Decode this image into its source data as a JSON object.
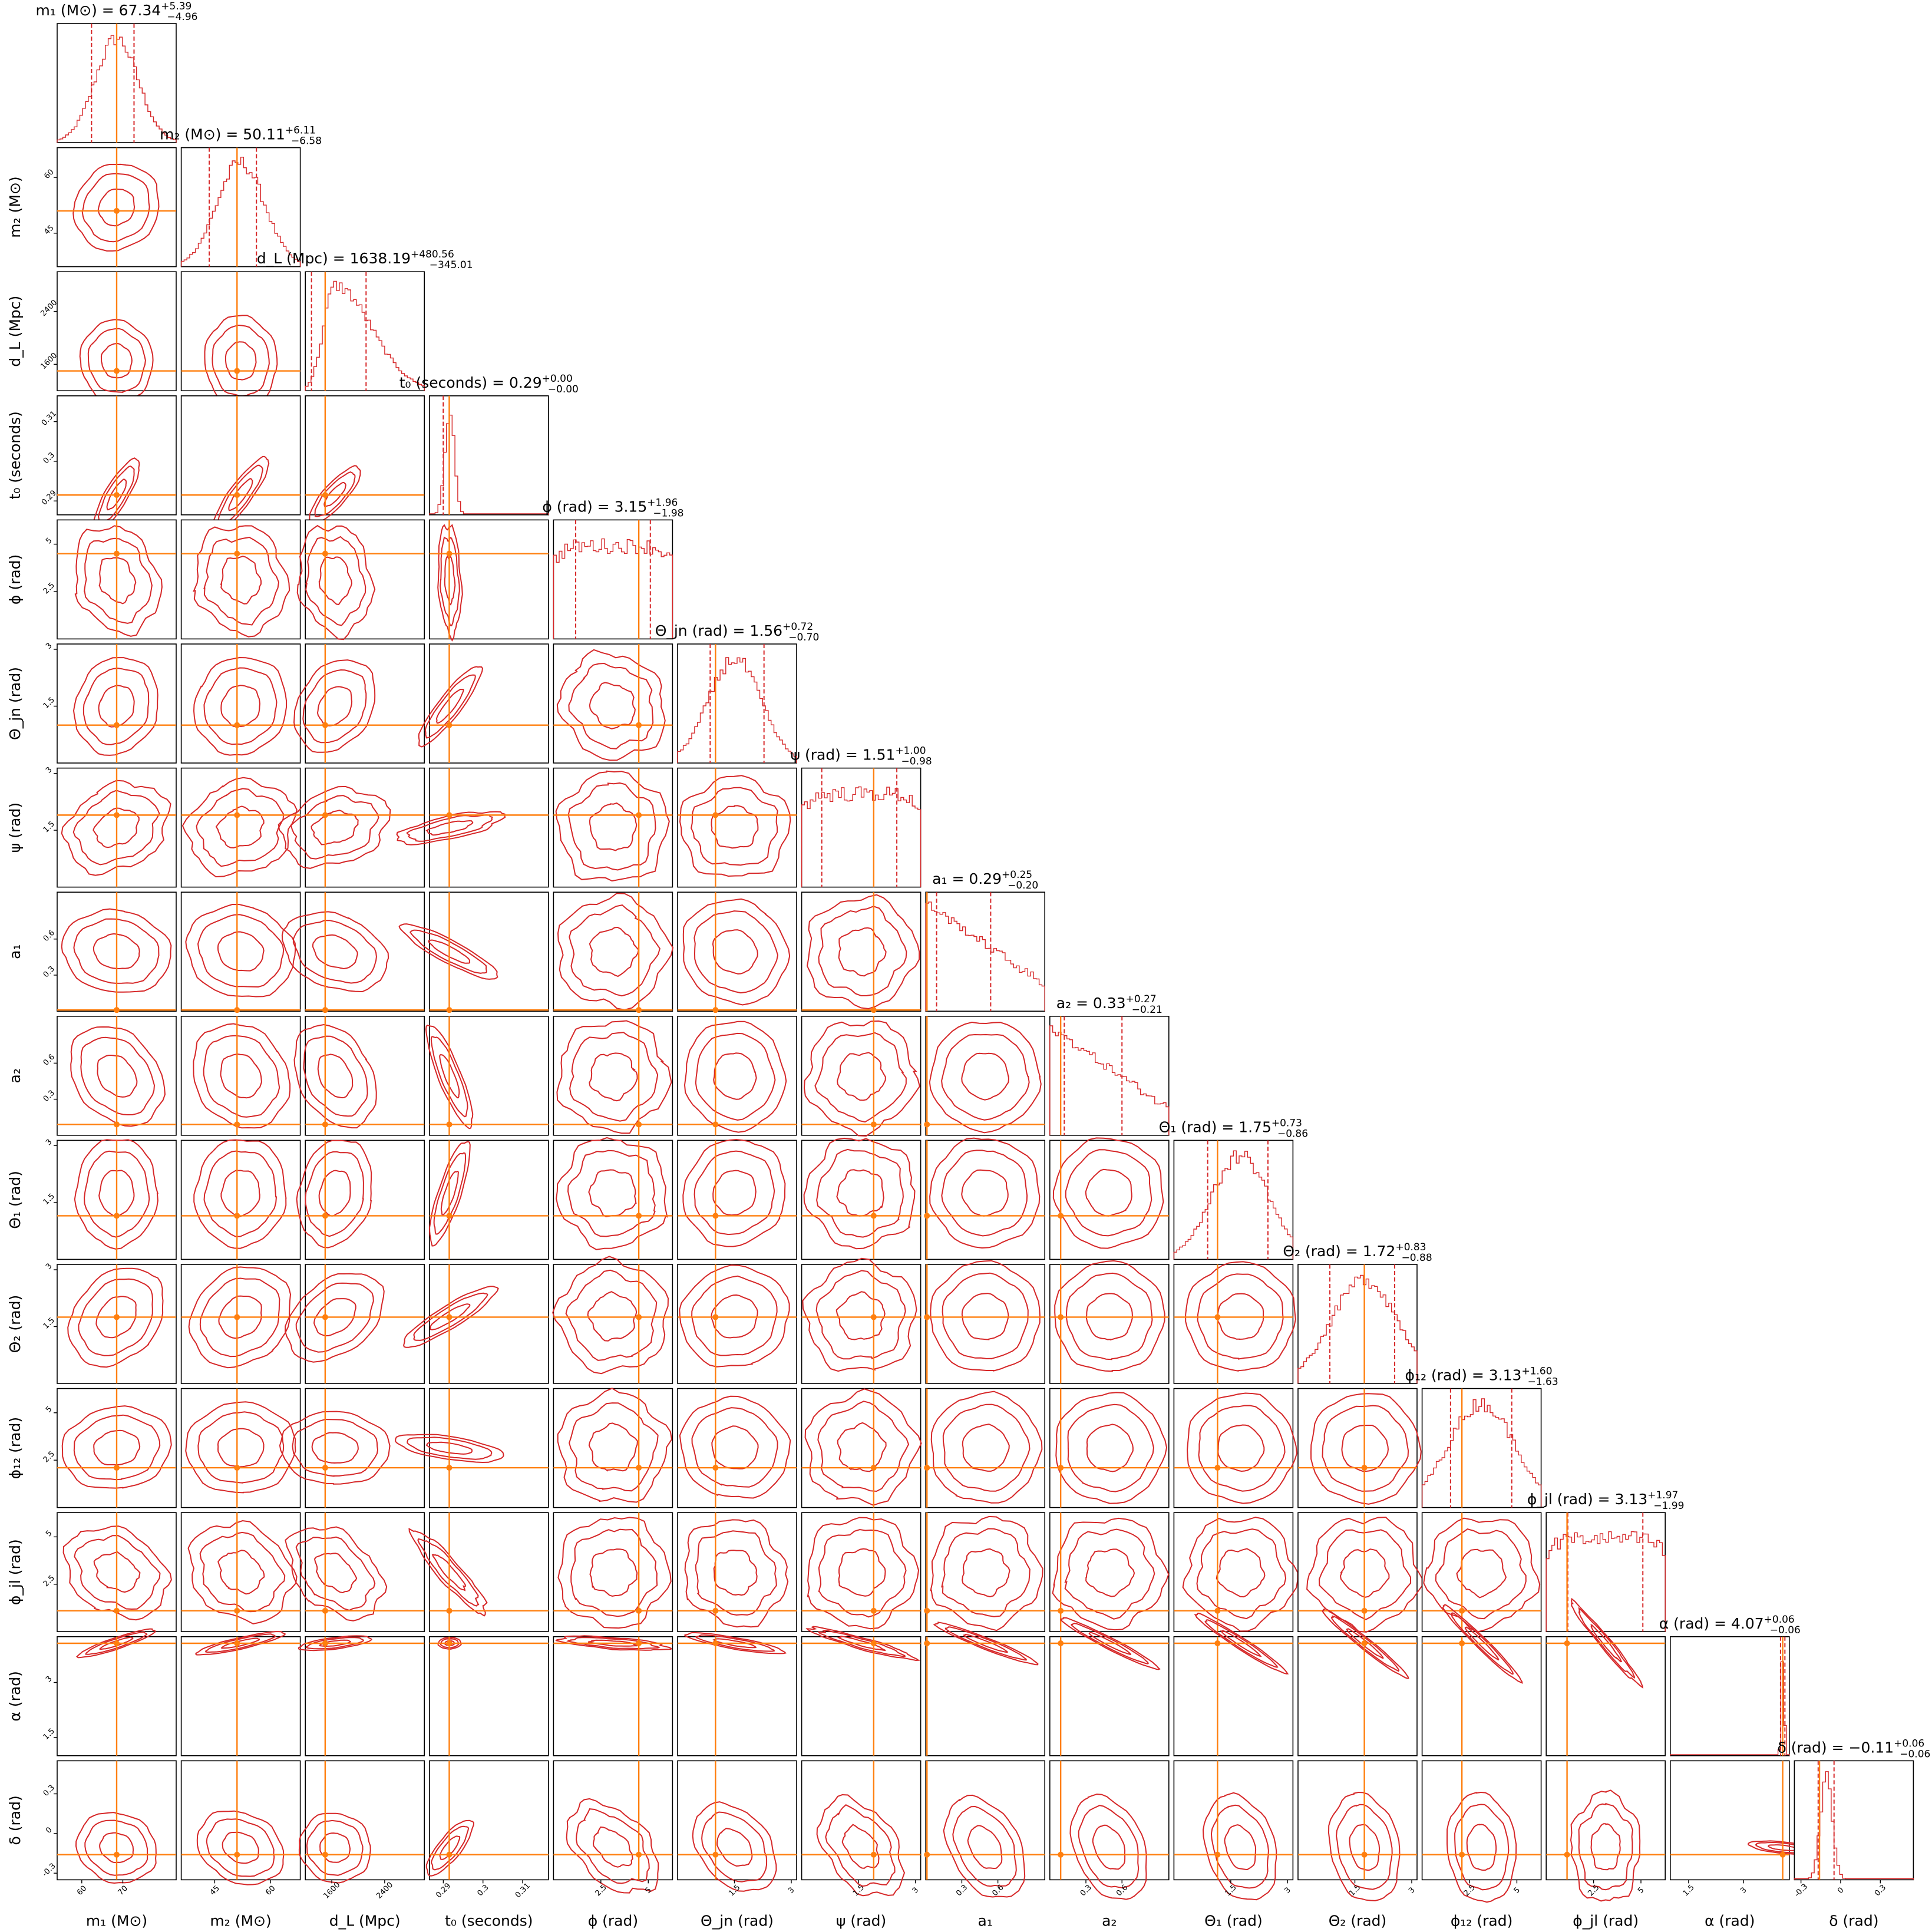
{
  "chart_data": {
    "type": "corner",
    "colors": {
      "posterior": "#d62728",
      "truth": "#ff7f0e",
      "frame": "#000000"
    },
    "parameters": [
      {
        "key": "m1",
        "label": "m₁ (M⊙)",
        "title": "m₁ (M⊙) = 67.34",
        "median": 67.34,
        "plus": "+5.39",
        "minus": "−4.96",
        "truth": 68.5,
        "range": [
          54,
          83
        ],
        "ticks": [
          60,
          70
        ],
        "hist_shape": "gauss",
        "hist_center": 0.5,
        "hist_width": 0.18
      },
      {
        "key": "m2",
        "label": "m₂ (M⊙)",
        "title": "m₂ (M⊙) = 50.11",
        "median": 50.11,
        "plus": "+6.11",
        "minus": "−6.58",
        "truth": 51.0,
        "range": [
          36,
          68
        ],
        "ticks": [
          45,
          60
        ],
        "hist_shape": "gauss",
        "hist_center": 0.5,
        "hist_width": 0.2
      },
      {
        "key": "dL",
        "label": "d_L (Mpc)",
        "title": "d_L (Mpc) = 1638.19",
        "median": 1638.19,
        "plus": "+480.56",
        "minus": "−345.01",
        "truth": 1500,
        "range": [
          1200,
          3000
        ],
        "ticks": [
          1600,
          2400
        ],
        "hist_shape": "skew",
        "hist_center": 0.25,
        "hist_width": 0.16
      },
      {
        "key": "t0",
        "label": "t₀ (seconds)",
        "title": "t₀ (seconds) = 0.29",
        "median": 0.29,
        "plus": "+0.00",
        "minus": "−0.00",
        "truth": 0.2915,
        "range": [
          0.2865,
          0.3165
        ],
        "ticks": [
          0.29,
          0.3,
          0.31
        ],
        "hist_shape": "gauss",
        "hist_center": 0.17,
        "hist_width": 0.04
      },
      {
        "key": "phi",
        "label": "ϕ (rad)",
        "title": "ϕ (rad) = 3.15",
        "median": 3.15,
        "plus": "+1.96",
        "minus": "−1.98",
        "truth": 4.5,
        "range": [
          0,
          6.28
        ],
        "ticks": [
          2.5,
          5.0
        ],
        "hist_shape": "flat",
        "hist_center": 0.5,
        "hist_width": 1.0
      },
      {
        "key": "thetajn",
        "label": "Θ_jn (rad)",
        "title": "Θ_jn (rad) = 1.56",
        "median": 1.56,
        "plus": "+0.72",
        "minus": "−0.70",
        "truth": 1.0,
        "range": [
          0,
          3.14
        ],
        "ticks": [
          1.5,
          3.0
        ],
        "hist_shape": "gauss",
        "hist_center": 0.48,
        "hist_width": 0.22
      },
      {
        "key": "psi",
        "label": "ψ (rad)",
        "title": "ψ (rad) = 1.51",
        "median": 1.51,
        "plus": "+1.00",
        "minus": "−0.98",
        "truth": 1.9,
        "range": [
          0,
          3.14
        ],
        "ticks": [
          1.5,
          3.0
        ],
        "hist_shape": "flat",
        "hist_center": 0.5,
        "hist_width": 1.0
      },
      {
        "key": "a1",
        "label": "a₁",
        "title": "a₁ = 0.29",
        "median": 0.29,
        "plus": "+0.25",
        "minus": "−0.20",
        "truth": 0.01,
        "range": [
          0,
          0.99
        ],
        "ticks": [
          0.3,
          0.6
        ],
        "hist_shape": "decay",
        "hist_center": 0.0,
        "hist_width": 1.0
      },
      {
        "key": "a2",
        "label": "a₂",
        "title": "a₂ = 0.33",
        "median": 0.33,
        "plus": "+0.27",
        "minus": "−0.21",
        "truth": 0.09,
        "range": [
          0,
          0.99
        ],
        "ticks": [
          0.3,
          0.6
        ],
        "hist_shape": "decay",
        "hist_center": 0.0,
        "hist_width": 1.0
      },
      {
        "key": "theta1",
        "label": "Θ₁ (rad)",
        "title": "Θ₁ (rad) = 1.75",
        "median": 1.75,
        "plus": "+0.73",
        "minus": "−0.86",
        "truth": 1.15,
        "range": [
          0,
          3.14
        ],
        "ticks": [
          1.5,
          3.0
        ],
        "hist_shape": "gauss",
        "hist_center": 0.56,
        "hist_width": 0.24
      },
      {
        "key": "theta2",
        "label": "Θ₂ (rad)",
        "title": "Θ₂ (rad) = 1.72",
        "median": 1.72,
        "plus": "+0.83",
        "minus": "−0.88",
        "truth": 1.75,
        "range": [
          0,
          3.14
        ],
        "ticks": [
          1.5,
          3.0
        ],
        "hist_shape": "gauss",
        "hist_center": 0.56,
        "hist_width": 0.28
      },
      {
        "key": "phi12",
        "label": "ϕ₁₂ (rad)",
        "title": "ϕ₁₂ (rad) = 3.13",
        "median": 3.13,
        "plus": "+1.60",
        "minus": "−1.63",
        "truth": 2.1,
        "range": [
          0,
          6.28
        ],
        "ticks": [
          2.5,
          5.0
        ],
        "hist_shape": "gauss",
        "hist_center": 0.5,
        "hist_width": 0.28
      },
      {
        "key": "phijl",
        "label": "ϕ_jl (rad)",
        "title": "ϕ_jl (rad) = 3.13",
        "median": 3.13,
        "plus": "+1.97",
        "minus": "−1.99",
        "truth": 1.1,
        "range": [
          0,
          6.28
        ],
        "ticks": [
          2.5,
          5.0
        ],
        "hist_shape": "flat",
        "hist_center": 0.5,
        "hist_width": 1.0
      },
      {
        "key": "alpha",
        "label": "α (rad)",
        "title": "α (rad) = 4.07",
        "median": 4.07,
        "plus": "+0.06",
        "minus": "−0.06",
        "truth": 4.07,
        "range": [
          1.0,
          4.25
        ],
        "ticks": [
          1.5,
          3.0
        ],
        "hist_shape": "gauss",
        "hist_center": 0.945,
        "hist_width": 0.012
      },
      {
        "key": "delta",
        "label": "δ (rad)",
        "title": "δ (rad) = −0.11",
        "median": -0.11,
        "plus": "+0.06",
        "minus": "−0.06",
        "truth": -0.16,
        "range": [
          -0.35,
          0.55
        ],
        "ticks": [
          -0.3,
          0.0,
          0.3
        ],
        "hist_shape": "gauss",
        "hist_center": 0.27,
        "hist_width": 0.05
      }
    ]
  }
}
